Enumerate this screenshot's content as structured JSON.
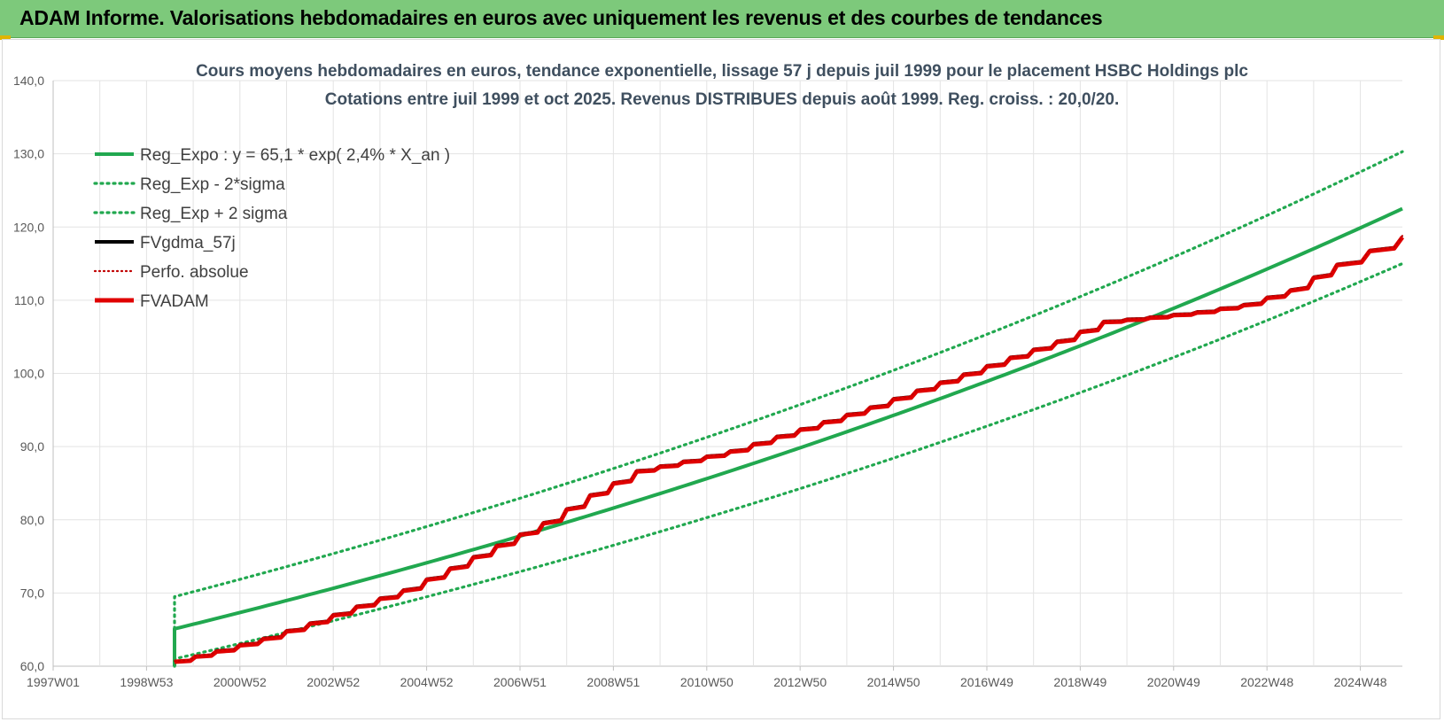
{
  "banner": {
    "title": "ADAM Informe. Valorisations hebdomadaires en euros avec uniquement les revenus et des courbes de tendances",
    "color": "#7dc97b"
  },
  "chart_data": {
    "type": "line",
    "title": "Cours moyens hebdomadaires en euros, tendance exponentielle, lissage 57 j depuis juil 1999 pour le placement HSBC Holdings plc",
    "subtitle": "Cotations entre juil 1999 et oct 2025. Revenus DISTRIBUES depuis août 1999. Reg. croiss. : 20,0/20.",
    "xlabel": "",
    "ylabel": "",
    "ylim": [
      60,
      140
    ],
    "yticks": [
      "60,0",
      "70,0",
      "80,0",
      "90,0",
      "100,0",
      "110,0",
      "120,0",
      "130,0",
      "140,0"
    ],
    "xlim": [
      1997.0,
      2025.9
    ],
    "xticks": [
      {
        "label": "1997W01",
        "x": 1997.0
      },
      {
        "label": "1998W53",
        "x": 1999.0
      },
      {
        "label": "2000W52",
        "x": 2001.0
      },
      {
        "label": "2002W52",
        "x": 2003.0
      },
      {
        "label": "2004W52",
        "x": 2005.0
      },
      {
        "label": "2006W51",
        "x": 2007.0
      },
      {
        "label": "2008W51",
        "x": 2009.0
      },
      {
        "label": "2010W50",
        "x": 2011.0
      },
      {
        "label": "2012W50",
        "x": 2013.0
      },
      {
        "label": "2014W50",
        "x": 2015.0
      },
      {
        "label": "2016W49",
        "x": 2017.0
      },
      {
        "label": "2018W49",
        "x": 2019.0
      },
      {
        "label": "2020W49",
        "x": 2021.0
      },
      {
        "label": "2022W48",
        "x": 2023.0
      },
      {
        "label": "2024W48",
        "x": 2025.0
      }
    ],
    "grid": true,
    "legend_position": "top-left",
    "series": [
      {
        "name": "Reg_Expo : y = 65,1 * exp( 2,4% *  X_an )",
        "color": "#21a84f",
        "style": "solid",
        "x": [
          1999.6,
          1999.6,
          2025.9
        ],
        "y": [
          60.0,
          65.1,
          122.5
        ]
      },
      {
        "name": "Reg_Exp - 2*sigma",
        "color": "#21a84f",
        "style": "dotted",
        "x": [
          1999.6,
          1999.6,
          2025.9
        ],
        "y": [
          60.0,
          61.0,
          115.0
        ]
      },
      {
        "name": "Reg_Exp + 2 sigma",
        "color": "#21a84f",
        "style": "dotted",
        "x": [
          1999.6,
          1999.6,
          2025.9
        ],
        "y": [
          60.0,
          69.5,
          130.3
        ]
      },
      {
        "name": "FVgdma_57j",
        "color": "#000000",
        "style": "solid",
        "x": [
          1999.6,
          2000.5,
          2001.5,
          2002.5,
          2003.5,
          2004.5,
          2005.5,
          2006.5,
          2007.5,
          2008.5,
          2009.5,
          2010.5,
          2011.5,
          2012.5,
          2013.5,
          2014.5,
          2015.5,
          2016.5,
          2017.5,
          2018.5,
          2019.5,
          2020.5,
          2021.5,
          2022.5,
          2023.5,
          2024.5,
          2025.9
        ],
        "y": [
          60.7,
          62.2,
          63.9,
          66.0,
          68.3,
          70.5,
          73.5,
          76.6,
          79.7,
          83.5,
          86.8,
          88.1,
          89.5,
          91.5,
          93.5,
          95.5,
          97.8,
          100.0,
          102.3,
          104.5,
          107.2,
          107.8,
          108.5,
          109.5,
          111.5,
          115.0,
          118.8
        ]
      },
      {
        "name": "Perfo. absolue",
        "color": "#c00000",
        "style": "dotted",
        "x": [
          1999.6,
          2000.5,
          2001.5,
          2002.5,
          2003.5,
          2004.5,
          2005.5,
          2006.5,
          2007.5,
          2008.5,
          2009.5,
          2010.5,
          2011.5,
          2012.5,
          2013.5,
          2014.5,
          2015.5,
          2016.5,
          2017.5,
          2018.5,
          2019.5,
          2020.5,
          2021.5,
          2022.5,
          2023.5,
          2024.5,
          2025.9
        ],
        "y": [
          60.7,
          62.2,
          63.9,
          66.0,
          68.3,
          70.5,
          73.5,
          76.6,
          79.7,
          83.5,
          86.8,
          88.1,
          89.5,
          91.5,
          93.5,
          95.5,
          97.8,
          100.0,
          102.3,
          104.5,
          107.2,
          107.8,
          108.5,
          109.5,
          111.5,
          115.0,
          118.8
        ]
      },
      {
        "name": "FVADAM",
        "color": "#e00000",
        "style": "solid",
        "x": [
          1999.6,
          2000.5,
          2001.5,
          2002.5,
          2003.5,
          2004.5,
          2005.5,
          2006.5,
          2007.5,
          2008.5,
          2009.5,
          2010.5,
          2011.5,
          2012.5,
          2013.5,
          2014.5,
          2015.5,
          2016.5,
          2017.5,
          2018.5,
          2019.5,
          2020.5,
          2021.5,
          2022.5,
          2023.5,
          2024.5,
          2025.9
        ],
        "y": [
          60.6,
          62.0,
          63.7,
          65.8,
          68.1,
          70.3,
          73.3,
          76.4,
          79.5,
          83.3,
          86.6,
          87.9,
          89.3,
          91.3,
          93.3,
          95.3,
          97.6,
          99.8,
          102.1,
          104.3,
          107.0,
          107.6,
          108.3,
          109.3,
          111.3,
          114.8,
          118.6
        ]
      }
    ]
  }
}
